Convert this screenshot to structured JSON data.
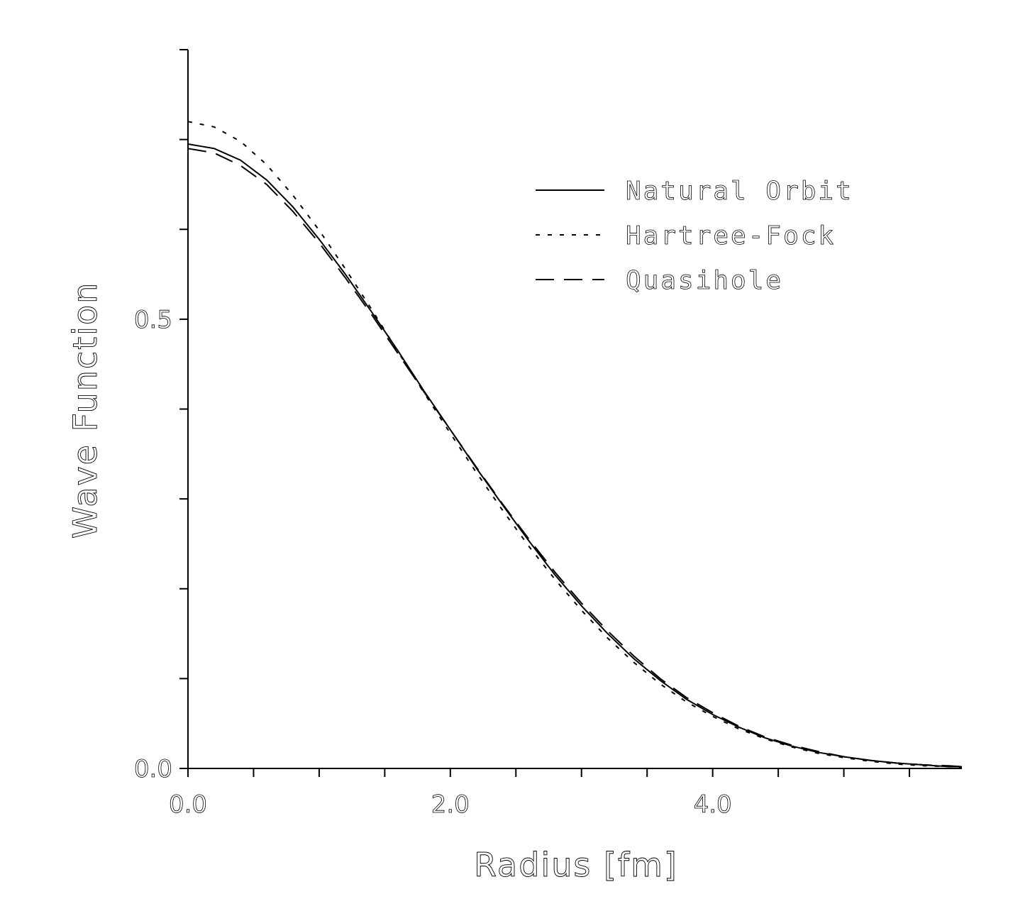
{
  "chart_data": {
    "type": "line",
    "title": "",
    "xlabel": "Radius [fm]",
    "ylabel": "Wave Function",
    "xlim": [
      0,
      5.9
    ],
    "ylim": [
      0,
      0.8
    ],
    "x_ticks": [
      0,
      0.5,
      1,
      1.5,
      2,
      2.5,
      3,
      3.5,
      4,
      4.5,
      5,
      5.5
    ],
    "x_tick_labels": [
      {
        "value": 0,
        "label": "0.0"
      },
      {
        "value": 2,
        "label": "2.0"
      },
      {
        "value": 4,
        "label": "4.0"
      }
    ],
    "y_ticks": [
      0,
      0.1,
      0.2,
      0.3,
      0.4,
      0.5,
      0.6,
      0.7,
      0.8
    ],
    "y_tick_labels": [
      {
        "value": 0,
        "label": "0.0"
      },
      {
        "value": 0.5,
        "label": "0.5"
      }
    ],
    "grid": false,
    "legend_position": "top-right",
    "x": [
      0,
      0.2,
      0.4,
      0.6,
      0.8,
      1.0,
      1.2,
      1.4,
      1.6,
      1.8,
      2.0,
      2.2,
      2.4,
      2.6,
      2.8,
      3.0,
      3.2,
      3.4,
      3.6,
      3.8,
      4.0,
      4.2,
      4.4,
      4.6,
      4.8,
      5.0,
      5.2,
      5.4,
      5.6,
      5.8,
      5.9
    ],
    "series": [
      {
        "name": "Natural Orbit",
        "style": "solid",
        "values": [
          0.695,
          0.69,
          0.677,
          0.655,
          0.625,
          0.589,
          0.55,
          0.508,
          0.465,
          0.42,
          0.377,
          0.334,
          0.293,
          0.253,
          0.215,
          0.181,
          0.15,
          0.122,
          0.098,
          0.077,
          0.06,
          0.046,
          0.034,
          0.025,
          0.018,
          0.013,
          0.009,
          0.006,
          0.004,
          0.002,
          0.002
        ]
      },
      {
        "name": "Hartree-Fock",
        "style": "dotted",
        "values": [
          0.72,
          0.714,
          0.698,
          0.672,
          0.638,
          0.599,
          0.556,
          0.511,
          0.464,
          0.418,
          0.373,
          0.329,
          0.287,
          0.247,
          0.21,
          0.176,
          0.145,
          0.118,
          0.094,
          0.074,
          0.058,
          0.044,
          0.033,
          0.024,
          0.017,
          0.012,
          0.008,
          0.005,
          0.003,
          0.002,
          0.001
        ]
      },
      {
        "name": "Quasihole",
        "style": "dashed",
        "values": [
          0.69,
          0.685,
          0.671,
          0.65,
          0.62,
          0.585,
          0.546,
          0.505,
          0.462,
          0.419,
          0.377,
          0.335,
          0.294,
          0.255,
          0.218,
          0.184,
          0.153,
          0.125,
          0.1,
          0.079,
          0.062,
          0.047,
          0.035,
          0.026,
          0.019,
          0.013,
          0.009,
          0.006,
          0.004,
          0.003,
          0.002
        ]
      }
    ]
  }
}
